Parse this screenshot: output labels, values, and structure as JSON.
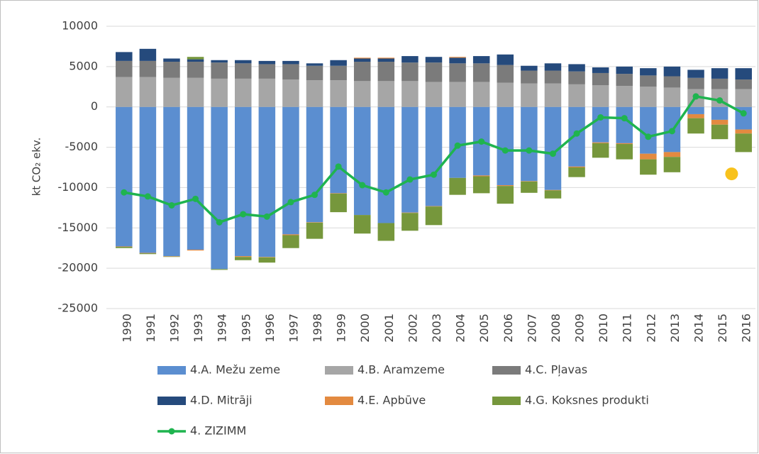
{
  "chart_data": {
    "type": "bar",
    "stacked": true,
    "y_label": "kt CO₂ ekv.",
    "categories": [
      "1990",
      "1991",
      "1992",
      "1993",
      "1994",
      "1995",
      "1996",
      "1997",
      "1998",
      "1999",
      "2000",
      "2001",
      "2002",
      "2003",
      "2004",
      "2005",
      "2006",
      "2007",
      "2008",
      "2009",
      "2010",
      "2011",
      "2012",
      "2013",
      "2014",
      "2015",
      "2016"
    ],
    "ylim": [
      -25000,
      10000
    ],
    "yticks": [
      -25000,
      -20000,
      -15000,
      -10000,
      -5000,
      0,
      5000,
      10000
    ],
    "grid": true,
    "series": [
      {
        "name": "4.A. Mežu zeme",
        "color": "#5b8ed0",
        "values": [
          -17300,
          -18100,
          -18500,
          -17700,
          -20100,
          -18500,
          -18600,
          -15800,
          -14300,
          -10700,
          -13400,
          -14400,
          -13100,
          -12300,
          -8800,
          -8500,
          -9700,
          -9200,
          -10300,
          -7400,
          -4400,
          -4500,
          -5800,
          -5600,
          -900,
          -1600,
          -2800
        ]
      },
      {
        "name": "4.B. Aramzeme",
        "color": "#a6a6a6",
        "values": [
          3700,
          3700,
          3600,
          3600,
          3500,
          3500,
          3500,
          3400,
          3300,
          3300,
          3200,
          3200,
          3200,
          3100,
          3100,
          3100,
          3000,
          2900,
          2900,
          2800,
          2700,
          2600,
          2500,
          2400,
          2200,
          2200,
          2200
        ]
      },
      {
        "name": "4.C. Pļavas",
        "color": "#7b7b7b",
        "values": [
          2000,
          2000,
          2000,
          2000,
          2000,
          1900,
          1800,
          1900,
          1800,
          1800,
          2400,
          2400,
          2300,
          2400,
          2300,
          2300,
          2200,
          1600,
          1600,
          1600,
          1500,
          1500,
          1400,
          1400,
          1400,
          1300,
          1200
        ]
      },
      {
        "name": "4.D. Mitrāji",
        "color": "#254a7c",
        "values": [
          1100,
          1500,
          400,
          300,
          300,
          400,
          400,
          400,
          300,
          700,
          400,
          400,
          800,
          700,
          700,
          900,
          1300,
          600,
          900,
          900,
          700,
          900,
          900,
          1200,
          1000,
          1300,
          1400
        ]
      },
      {
        "name": "4.E. Apbūve",
        "color": "#e38a40",
        "values": [
          -50,
          -50,
          -50,
          -100,
          0,
          -100,
          -50,
          -100,
          -50,
          -50,
          100,
          100,
          -50,
          -50,
          100,
          -100,
          -100,
          -50,
          -50,
          -100,
          -100,
          -100,
          -700,
          -600,
          -500,
          -600,
          -500
        ]
      },
      {
        "name": "4.G. Koksnes produkti",
        "color": "#76973c",
        "values": [
          -150,
          -100,
          -50,
          300,
          -100,
          -400,
          -650,
          -1600,
          -2000,
          -2300,
          -2300,
          -2200,
          -2200,
          -2300,
          -2100,
          -2100,
          -2200,
          -1400,
          -1000,
          -1200,
          -1800,
          -1900,
          -1900,
          -1900,
          -1900,
          -1800,
          -2300
        ]
      },
      {
        "name": "4. ZIZIMM",
        "type": "line",
        "color": "#1fb44f",
        "values": [
          -10600,
          -11100,
          -12200,
          -11400,
          -14300,
          -13300,
          -13600,
          -11800,
          -10900,
          -7400,
          -9700,
          -10600,
          -9000,
          -8400,
          -4800,
          -4300,
          -5400,
          -5400,
          -5800,
          -3300,
          -1300,
          -1400,
          -3700,
          -3000,
          1300,
          800,
          -800
        ]
      }
    ],
    "extra_point": {
      "value": -8300,
      "color": "#f8c21c"
    }
  }
}
